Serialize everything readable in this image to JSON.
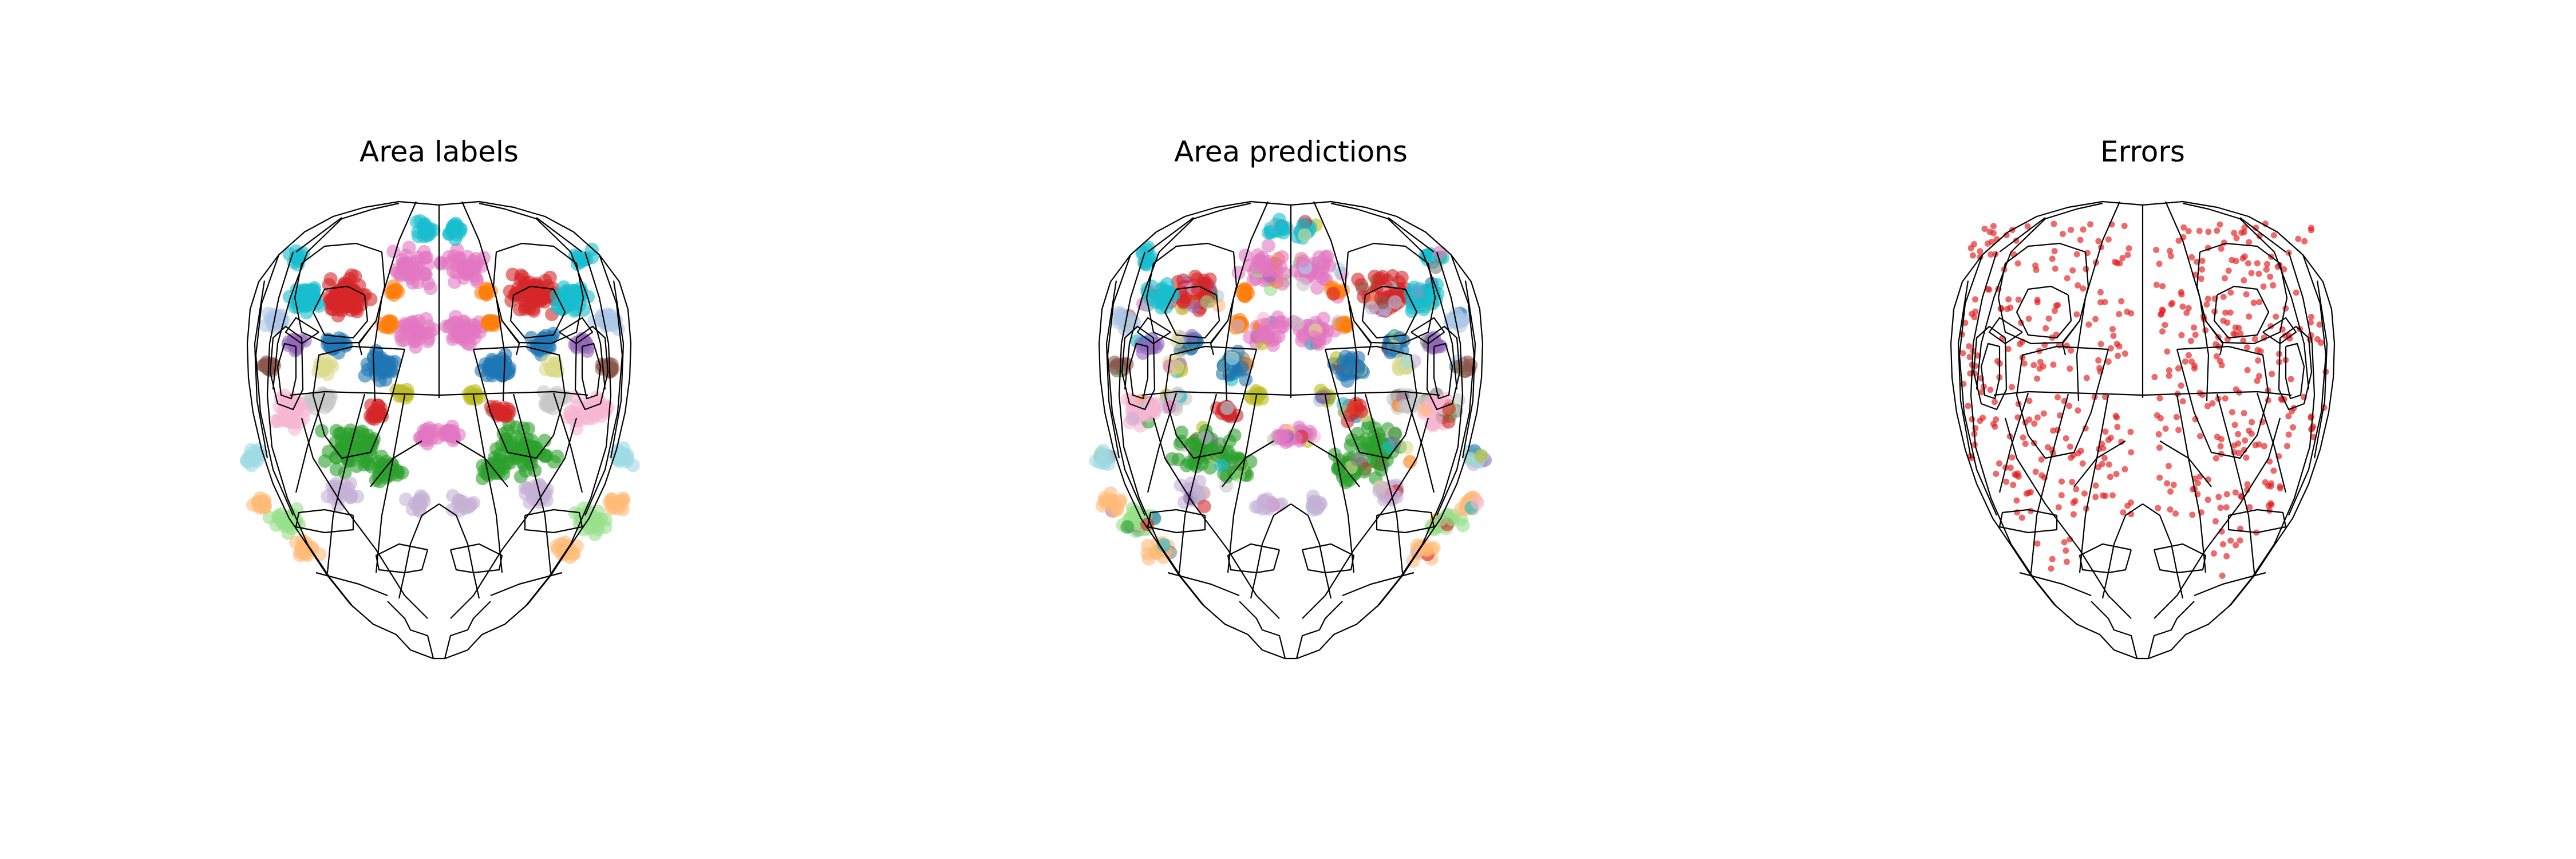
{
  "figure": {
    "panels": [
      {
        "title": "Area labels"
      },
      {
        "title": "Area predictions"
      },
      {
        "title": "Errors"
      }
    ]
  },
  "colors": {
    "outline": "#000000",
    "error_dot": "#e41a1c",
    "area_palette": [
      "#d62728",
      "#1f77b4",
      "#2ca02c",
      "#17becf",
      "#e377c2",
      "#ff7f0e",
      "#bcbd22",
      "#7f7f7f",
      "#9467bd",
      "#8c564b",
      "#aec7e8",
      "#f7b6d2",
      "#c5b0d5",
      "#c7c7c7",
      "#98df8a",
      "#ffbb78",
      "#9edae5",
      "#dbdb8d"
    ]
  }
}
